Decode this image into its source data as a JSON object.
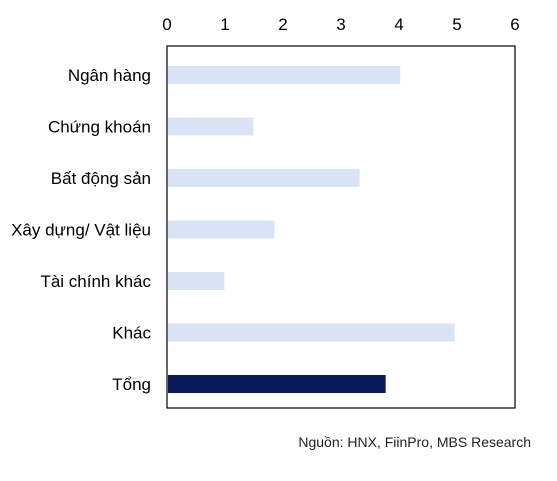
{
  "chart_data": {
    "type": "bar",
    "orientation": "horizontal",
    "categories": [
      "Ngân hàng",
      "Chứng khoán",
      "Bất động sản",
      "Xây dựng/ Vật liệu",
      "Tài chính khác",
      "Khác",
      "Tổng"
    ],
    "values": [
      4.02,
      1.49,
      3.32,
      1.85,
      0.99,
      4.96,
      3.77
    ],
    "highlight_category": "Tổng",
    "xlim": [
      0,
      6
    ],
    "xticks": [
      0,
      1,
      2,
      3,
      4,
      5,
      6
    ],
    "x_axis_position": "top",
    "grid": false,
    "colors": {
      "bar": "#dae3f5",
      "highlight": "#0a1a5c",
      "frame": "#000000"
    }
  },
  "source": "Nguồn: HNX, FiinPro, MBS Research"
}
